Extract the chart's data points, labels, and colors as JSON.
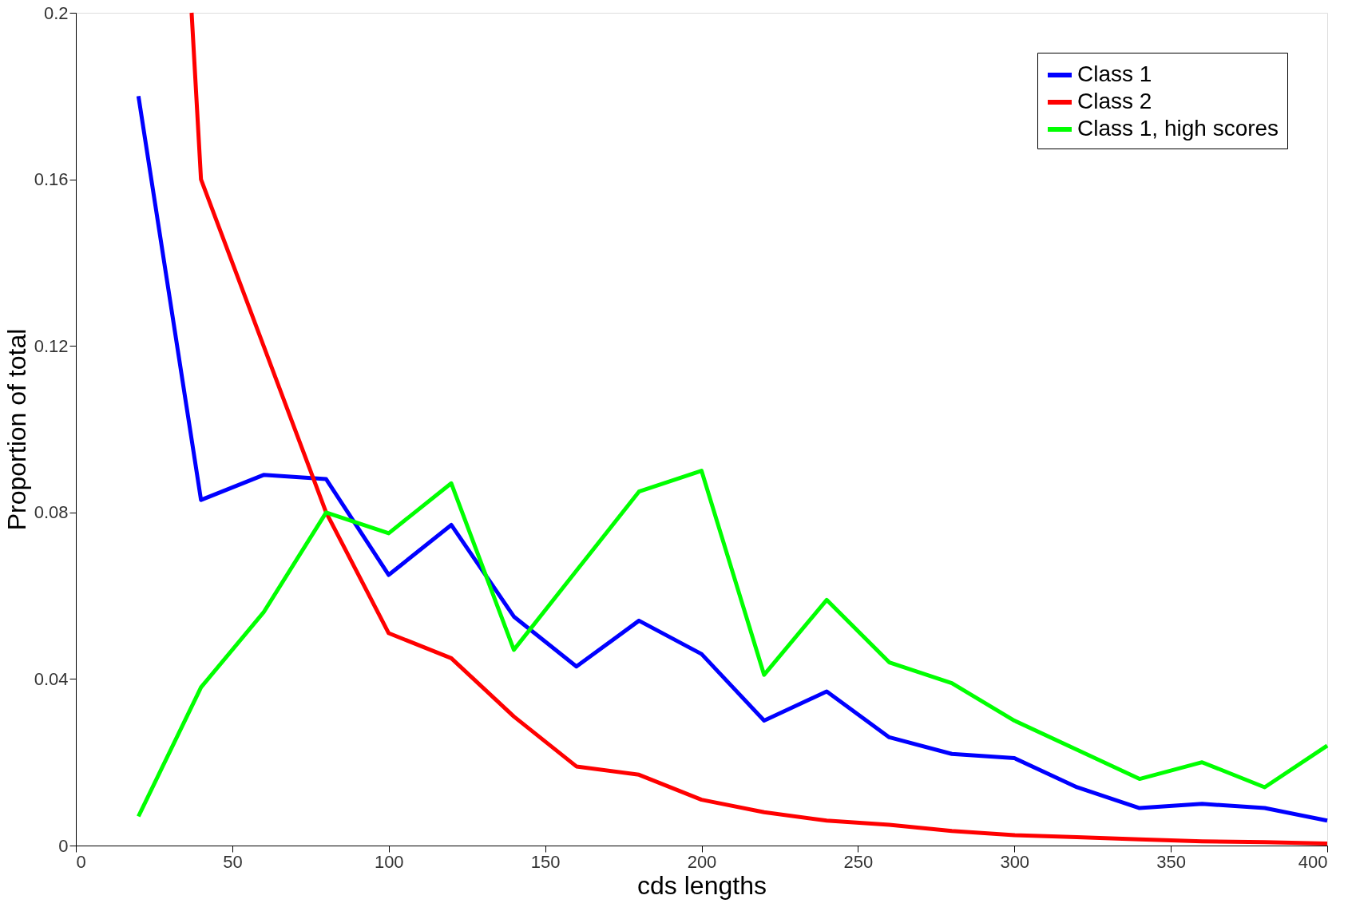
{
  "chart_data": {
    "type": "line",
    "xlabel": "cds lengths",
    "ylabel": "Proportion of total",
    "xlim": [
      0,
      400
    ],
    "xticks": [
      0,
      50,
      100,
      150,
      200,
      250,
      300,
      350,
      400
    ],
    "ylim": [
      0,
      0.2
    ],
    "yticks": [
      0,
      0.04,
      0.08,
      0.12,
      0.16,
      0.2
    ],
    "grid": false,
    "legend": "top right",
    "line_style": "solid",
    "marker": "none",
    "series": [
      {
        "name": "Class 1",
        "color": "#0000ff",
        "x": [
          20,
          40,
          60,
          80,
          100,
          120,
          140,
          160,
          180,
          200,
          220,
          240,
          260,
          280,
          300,
          320,
          340,
          360,
          380,
          400
        ],
        "values": [
          0.18,
          0.083,
          0.089,
          0.088,
          0.065,
          0.077,
          0.055,
          0.043,
          0.054,
          0.046,
          0.03,
          0.037,
          0.026,
          0.022,
          0.021,
          0.014,
          0.009,
          0.01,
          0.009,
          0.006
        ]
      },
      {
        "name": "Class 2",
        "color": "#ff0000",
        "x": [
          37,
          40,
          60,
          80,
          100,
          120,
          140,
          160,
          180,
          200,
          220,
          240,
          260,
          280,
          300,
          320,
          340,
          360,
          380,
          400
        ],
        "values": [
          0.2,
          0.16,
          0.12,
          0.08,
          0.051,
          0.045,
          0.031,
          0.019,
          0.017,
          0.011,
          0.008,
          0.006,
          0.005,
          0.0035,
          0.0025,
          0.002,
          0.0015,
          0.001,
          0.0008,
          0.0005
        ]
      },
      {
        "name": "Class 1, high scores",
        "color": "#00ff00",
        "x": [
          20,
          40,
          60,
          80,
          100,
          120,
          140,
          160,
          180,
          200,
          220,
          240,
          260,
          280,
          300,
          320,
          340,
          360,
          380,
          400
        ],
        "values": [
          0.007,
          0.038,
          0.056,
          0.08,
          0.075,
          0.087,
          0.047,
          0.066,
          0.085,
          0.09,
          0.041,
          0.059,
          0.044,
          0.039,
          0.03,
          0.023,
          0.016,
          0.02,
          0.014,
          0.024
        ]
      }
    ]
  }
}
